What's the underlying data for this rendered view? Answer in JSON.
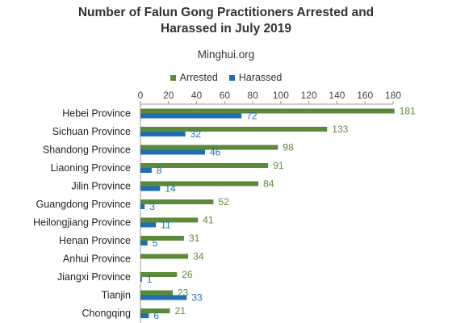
{
  "chart_data": {
    "type": "bar",
    "orientation": "horizontal",
    "title": "Number of Falun Gong Practitioners Arrested and Harassed in July 2019",
    "title_lines": [
      "Number of Falun Gong Practitioners Arrested and",
      "Harassed in July 2019"
    ],
    "subtitle": "Minghui.org",
    "xlabel": "",
    "ylabel": "",
    "xlim": [
      0,
      180
    ],
    "ticks": [
      0,
      20,
      40,
      60,
      80,
      100,
      120,
      140,
      160,
      180
    ],
    "grid": false,
    "legend_position": "top",
    "categories": [
      "Hebei Province",
      "Sichuan Province",
      "Shandong Province",
      "Liaoning Province",
      "Jilin Province",
      "Guangdong Province",
      "Heilongjiang Province",
      "Henan Province",
      "Anhui Province",
      "Jiangxi Province",
      "Tianjin",
      "Chongqing"
    ],
    "series": [
      {
        "name": "Arrested",
        "color": "#5b8a3a",
        "values": [
          181,
          133,
          98,
          91,
          84,
          52,
          41,
          31,
          34,
          26,
          23,
          21
        ]
      },
      {
        "name": "Harassed",
        "color": "#1f6fb0",
        "values": [
          72,
          32,
          46,
          8,
          14,
          3,
          11,
          5,
          null,
          1,
          33,
          6
        ]
      }
    ]
  }
}
